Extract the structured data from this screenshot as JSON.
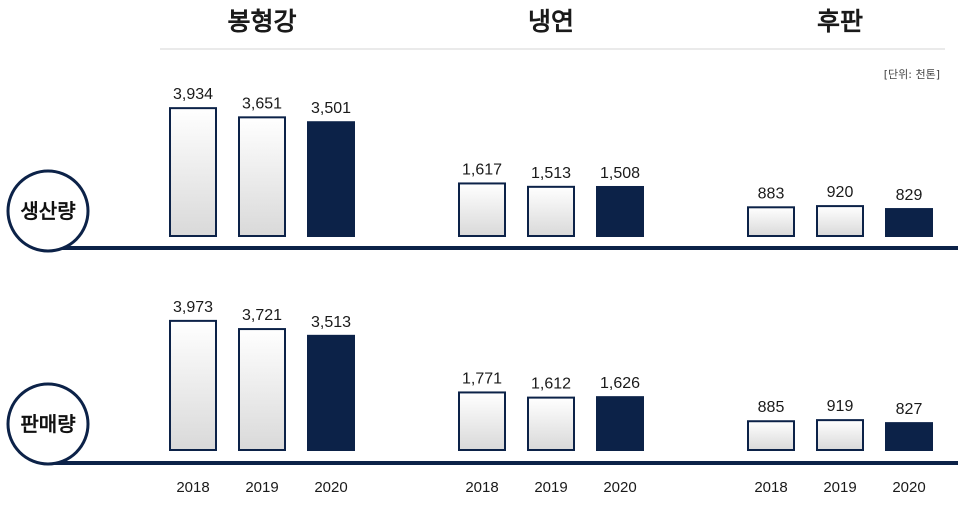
{
  "chart_data": {
    "type": "bar",
    "unit": "[단위: 천톤]",
    "groups": [
      "봉형강",
      "냉연",
      "후판"
    ],
    "years": [
      "2018",
      "2019",
      "2020"
    ],
    "rows": [
      {
        "label": "생산량",
        "values": [
          [
            3934,
            3651,
            3501
          ],
          [
            1617,
            1513,
            1508
          ],
          [
            883,
            920,
            829
          ]
        ],
        "labels": [
          [
            "3,934",
            "3,651",
            "3,501"
          ],
          [
            "1,617",
            "1,513",
            "1,508"
          ],
          [
            "883",
            "920",
            "829"
          ]
        ]
      },
      {
        "label": "판매량",
        "values": [
          [
            3973,
            3721,
            3513
          ],
          [
            1771,
            1612,
            1626
          ],
          [
            885,
            919,
            827
          ]
        ],
        "labels": [
          [
            "3,973",
            "3,721",
            "3,513"
          ],
          [
            "1,771",
            "1,612",
            "1,626"
          ],
          [
            "885",
            "919",
            "827"
          ]
        ]
      }
    ]
  },
  "colors": {
    "highlight": "#0c2248",
    "bar_outline": "#0c2248",
    "bar_gradient_top": "#ffffff",
    "bar_gradient_bottom": "#dcdcdc",
    "baseline": "#0c2248"
  }
}
